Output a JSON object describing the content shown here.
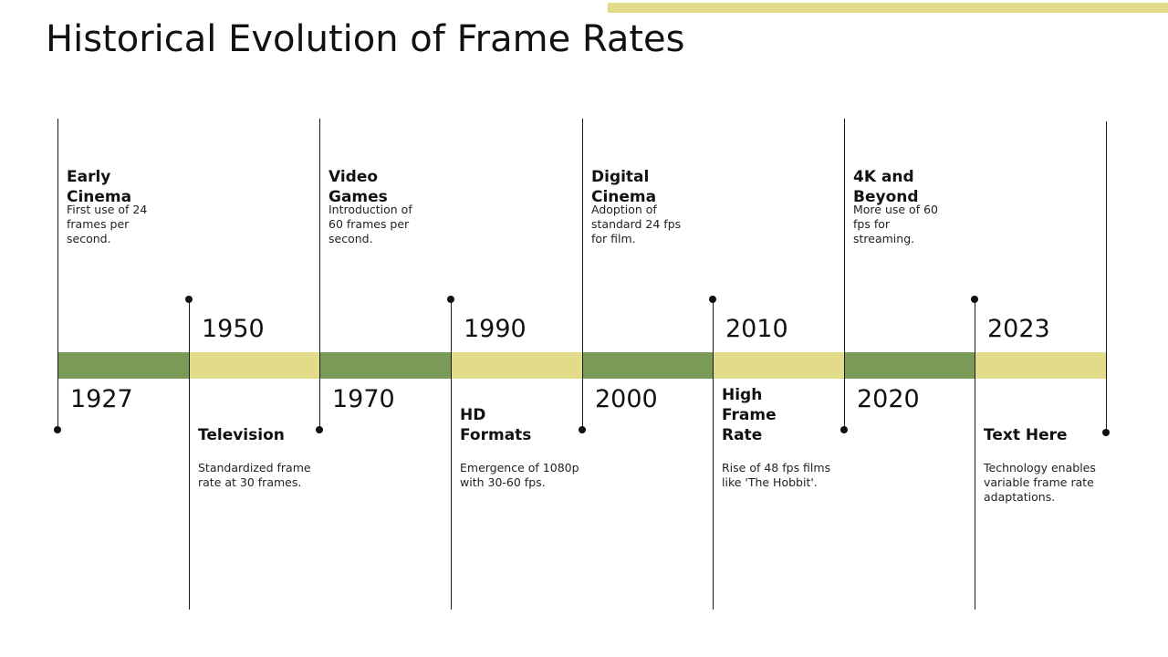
{
  "title": "Historical Evolution of Frame Rates",
  "colors": {
    "green": "#7a9a58",
    "yellow": "#e2dc8a",
    "line": "#1a1a1a"
  },
  "events": [
    {
      "year": "1927",
      "title": "Early Cinema",
      "desc": "First use of 24 frames per second."
    },
    {
      "year": "1950",
      "title": "Television",
      "desc": "Standardized frame rate at 30 frames."
    },
    {
      "year": "1970",
      "title": "Video Games",
      "desc": "Introduction of 60 frames per second."
    },
    {
      "year": "1990",
      "title": "HD Formats",
      "desc": "Emergence of 1080p with 30-60 fps."
    },
    {
      "year": "2000",
      "title": "Digital Cinema",
      "desc": "Adoption of standard 24 fps for film."
    },
    {
      "year": "2010",
      "title": "High Frame Rate",
      "desc": "Rise of 48 fps films like 'The Hobbit'."
    },
    {
      "year": "2020",
      "title": "4K and Beyond",
      "desc": "More use of 60 fps for streaming."
    },
    {
      "year": "2023",
      "title": "Text Here",
      "desc": "Technology enables variable frame rate adaptations."
    }
  ]
}
